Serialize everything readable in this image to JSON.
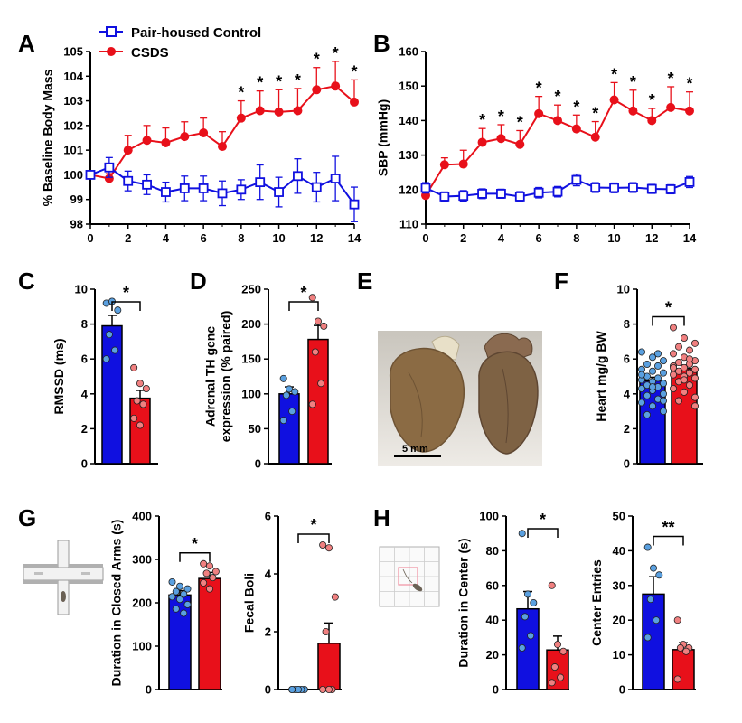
{
  "colors": {
    "control": "#1010e0",
    "csds": "#e8101a",
    "control_light": "#5aa0e0",
    "csds_light": "#f08080"
  },
  "legend": {
    "control": "Pair-housed Control",
    "csds": "CSDS"
  },
  "chart_data": [
    {
      "id": "A",
      "type": "line",
      "ylabel": "% Baseline Body Mass",
      "x": [
        0,
        1,
        2,
        3,
        4,
        5,
        6,
        7,
        8,
        9,
        10,
        11,
        12,
        13,
        14
      ],
      "ylim": [
        98,
        105
      ],
      "yticks": [
        98,
        99,
        100,
        101,
        102,
        103,
        104,
        105
      ],
      "xticks": [
        0,
        2,
        4,
        6,
        8,
        10,
        12,
        14
      ],
      "series": [
        {
          "name": "Pair-housed Control",
          "values": [
            100,
            100.3,
            99.75,
            99.6,
            99.3,
            99.45,
            99.45,
            99.25,
            99.4,
            99.7,
            99.3,
            99.95,
            99.5,
            99.85,
            98.8
          ],
          "err": [
            0,
            0.4,
            0.4,
            0.4,
            0.4,
            0.5,
            0.5,
            0.5,
            0.4,
            0.7,
            0.6,
            0.7,
            0.6,
            0.9,
            0.7
          ]
        },
        {
          "name": "CSDS",
          "values": [
            100,
            99.85,
            101.0,
            101.4,
            101.3,
            101.55,
            101.7,
            101.15,
            102.3,
            102.6,
            102.55,
            102.6,
            103.45,
            103.6,
            102.95
          ],
          "err": [
            0,
            0.2,
            0.6,
            0.6,
            0.6,
            0.6,
            0.6,
            0.6,
            0.7,
            0.8,
            0.9,
            0.9,
            0.9,
            1.0,
            0.9
          ]
        }
      ],
      "stars": [
        "*",
        "*",
        "*",
        "*",
        "*",
        "*",
        "*"
      ],
      "star_x": [
        8,
        9,
        10,
        11,
        12,
        13,
        14
      ]
    },
    {
      "id": "B",
      "type": "line",
      "ylabel": "SBP (mmHg)",
      "x": [
        0,
        1,
        2,
        3,
        4,
        5,
        6,
        7,
        8,
        9,
        10,
        11,
        12,
        13,
        14
      ],
      "ylim": [
        110,
        160
      ],
      "yticks": [
        110,
        120,
        130,
        140,
        150,
        160
      ],
      "xticks": [
        0,
        2,
        4,
        6,
        8,
        10,
        12,
        14
      ],
      "series": [
        {
          "name": "Pair-housed Control",
          "values": [
            120.5,
            118,
            118.2,
            118.8,
            118.8,
            118,
            119.1,
            119.4,
            122.8,
            120.6,
            120.5,
            120.6,
            120.2,
            120.1,
            122.2
          ],
          "err": [
            1.5,
            1.3,
            1.5,
            1.4,
            1.3,
            1.4,
            1.5,
            1.5,
            1.7,
            1.4,
            1.4,
            1.4,
            1.3,
            1.3,
            1.6
          ]
        },
        {
          "name": "CSDS",
          "values": [
            118.3,
            127.2,
            127.4,
            133.7,
            134.8,
            133.1,
            142,
            140,
            137.6,
            135.2,
            146,
            142.8,
            140,
            143.8,
            142.8
          ],
          "err": [
            2,
            2,
            4,
            4,
            4,
            4,
            5,
            4.5,
            4,
            4.5,
            5,
            6,
            3.5,
            6,
            5.5
          ]
        }
      ],
      "stars": [
        "*",
        "*",
        "*",
        "*",
        "*",
        "*",
        "*",
        "*",
        "*",
        "*",
        "*",
        "*"
      ],
      "star_x": [
        3,
        4,
        5,
        6,
        7,
        8,
        9,
        10,
        11,
        12,
        13,
        14
      ]
    },
    {
      "id": "C",
      "type": "bar",
      "ylabel": "RMSSD (ms)",
      "ylim": [
        0,
        10
      ],
      "yticks": [
        0,
        2,
        4,
        6,
        8,
        10
      ],
      "values": [
        7.9,
        3.75
      ],
      "err": [
        0.6,
        0.45
      ],
      "points": [
        [
          9.2,
          9.3,
          8.8,
          7.4,
          6.5,
          6.0
        ],
        [
          5.5,
          4.6,
          4.3,
          3.6,
          3.4,
          2.6,
          2.2
        ]
      ],
      "sig": "*"
    },
    {
      "id": "D",
      "type": "bar",
      "ylabel": [
        "Adrenal TH gene",
        "expression (% paired)"
      ],
      "ylim": [
        0,
        250
      ],
      "yticks": [
        0,
        50,
        100,
        150,
        200,
        250
      ],
      "values": [
        100,
        178
      ],
      "err": [
        10,
        20
      ],
      "points": [
        [
          122,
          107,
          103,
          98,
          75,
          62
        ],
        [
          238,
          204,
          197,
          160,
          115,
          85
        ]
      ],
      "sig": "*"
    },
    {
      "id": "F",
      "type": "bar",
      "ylabel": "Heart mg/g BW",
      "ylim": [
        0,
        10
      ],
      "yticks": [
        0,
        2,
        4,
        6,
        8,
        10
      ],
      "values": [
        4.75,
        5.45
      ],
      "err": [
        0.2,
        0.2
      ],
      "points": [
        [
          6.4,
          6.1,
          5.9,
          5.7,
          5.6,
          5.4,
          5.3,
          5.2,
          5.0,
          4.9,
          4.8,
          4.7,
          4.6,
          4.5,
          4.4,
          4.3,
          4.2,
          4.0,
          3.9,
          3.7,
          3.5,
          3.3,
          3.0,
          2.8,
          6.3,
          5.1,
          4.4,
          3.6
        ],
        [
          7.8,
          7.2,
          6.9,
          6.7,
          6.5,
          6.3,
          6.1,
          5.9,
          5.8,
          5.7,
          5.6,
          5.5,
          5.4,
          5.3,
          5.2,
          5.1,
          5.0,
          4.9,
          4.7,
          4.5,
          4.3,
          4.1,
          3.8,
          3.6,
          6.0,
          5.5,
          4.8,
          3.3
        ]
      ],
      "sig": "*"
    },
    {
      "id": "G1",
      "type": "bar",
      "ylabel": "Duration in Closed Arms (s)",
      "ylim": [
        0,
        400
      ],
      "yticks": [
        0,
        100,
        200,
        300,
        400
      ],
      "values": [
        218,
        256
      ],
      "err": [
        10,
        14
      ],
      "points": [
        [
          248,
          238,
          232,
          226,
          220,
          214,
          208,
          196,
          186,
          176
        ],
        [
          290,
          285,
          272,
          268,
          258,
          246,
          232
        ]
      ],
      "sig": "*"
    },
    {
      "id": "G2",
      "type": "bar",
      "ylabel": "Fecal Boli",
      "ylim": [
        0,
        6
      ],
      "yticks": [
        0,
        2,
        4,
        6
      ],
      "values": [
        0,
        1.6
      ],
      "err": [
        0,
        0.7
      ],
      "points": [
        [
          0,
          0,
          0,
          0,
          0,
          0,
          0
        ],
        [
          5.0,
          4.9,
          3.2,
          2.0,
          0,
          0,
          0
        ]
      ],
      "sig": "*"
    },
    {
      "id": "H1",
      "type": "bar",
      "ylabel": "Duration in Center (s)",
      "ylim": [
        0,
        100
      ],
      "yticks": [
        0,
        20,
        40,
        60,
        80,
        100
      ],
      "values": [
        46.5,
        22.8
      ],
      "err": [
        10,
        8
      ],
      "points": [
        [
          90,
          55,
          50,
          42,
          31,
          24
        ],
        [
          60,
          26,
          22,
          13,
          7,
          4
        ]
      ],
      "sig": "*"
    },
    {
      "id": "H2",
      "type": "bar",
      "ylabel": "Center Entries",
      "ylim": [
        0,
        50
      ],
      "yticks": [
        0,
        10,
        20,
        30,
        40,
        50
      ],
      "values": [
        27.5,
        11.5
      ],
      "err": [
        5,
        2
      ],
      "points": [
        [
          41,
          35,
          33,
          26,
          20,
          15
        ],
        [
          20,
          13,
          12,
          12,
          11,
          3
        ]
      ],
      "sig": "**"
    }
  ],
  "panel_e": {
    "label": "E",
    "scale_bar": "5 mm"
  },
  "panel_g": {
    "label": "G"
  },
  "panel_h": {
    "label": "H"
  }
}
